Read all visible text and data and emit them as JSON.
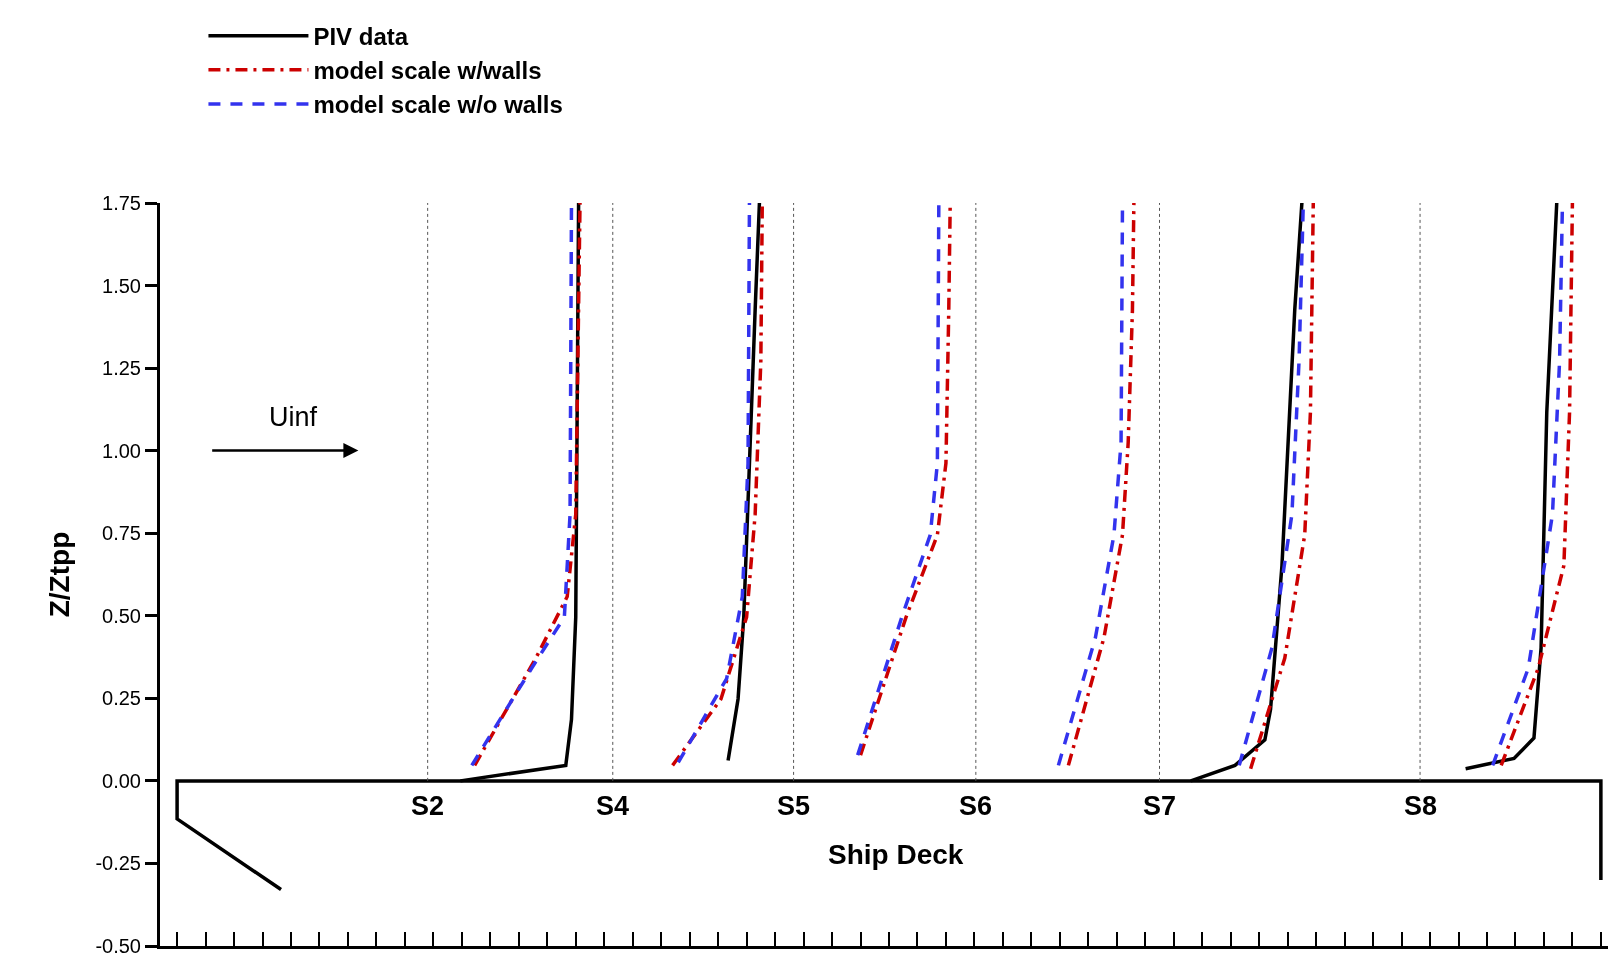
{
  "chart_data": {
    "type": "line",
    "ylabel": "Z/Ztpp",
    "legend": "top left",
    "grid": false,
    "xlim": [
      -0.12,
      10.05
    ],
    "xticks": [
      {
        "value": 0,
        "label": null
      },
      {
        "value": 0.2,
        "label": null
      },
      {
        "value": 0.4,
        "label": null
      },
      {
        "value": 0.6,
        "label": null
      },
      {
        "value": 0.8,
        "label": null
      },
      {
        "value": 1,
        "label": null
      },
      {
        "value": 1.2,
        "label": null
      },
      {
        "value": 1.4,
        "label": null
      },
      {
        "value": 1.6,
        "label": null
      },
      {
        "value": 1.8,
        "label": null
      },
      {
        "value": 2,
        "label": null
      },
      {
        "value": 2.2,
        "label": null
      },
      {
        "value": 2.4,
        "label": null
      },
      {
        "value": 2.6,
        "label": null
      },
      {
        "value": 2.8,
        "label": null
      },
      {
        "value": 3,
        "label": null
      },
      {
        "value": 3.2,
        "label": null
      },
      {
        "value": 3.4,
        "label": null
      },
      {
        "value": 3.6,
        "label": null
      },
      {
        "value": 3.8,
        "label": null
      },
      {
        "value": 4,
        "label": null
      },
      {
        "value": 4.2,
        "label": null
      },
      {
        "value": 4.4,
        "label": null
      },
      {
        "value": 4.6,
        "label": null
      },
      {
        "value": 4.8,
        "label": null
      },
      {
        "value": 5,
        "label": null
      },
      {
        "value": 5.2,
        "label": null
      },
      {
        "value": 5.4,
        "label": null
      },
      {
        "value": 5.6,
        "label": null
      },
      {
        "value": 5.8,
        "label": null
      },
      {
        "value": 6,
        "label": null
      },
      {
        "value": 6.2,
        "label": null
      },
      {
        "value": 6.4,
        "label": null
      },
      {
        "value": 6.6,
        "label": null
      },
      {
        "value": 6.8,
        "label": null
      },
      {
        "value": 7,
        "label": null
      },
      {
        "value": 7.2,
        "label": null
      },
      {
        "value": 7.4,
        "label": null
      },
      {
        "value": 7.6,
        "label": null
      },
      {
        "value": 7.8,
        "label": null
      },
      {
        "value": 8,
        "label": null
      },
      {
        "value": 8.2,
        "label": null
      },
      {
        "value": 8.4,
        "label": null
      },
      {
        "value": 8.6,
        "label": null
      },
      {
        "value": 8.8,
        "label": null
      },
      {
        "value": 9,
        "label": null
      },
      {
        "value": 9.2,
        "label": null
      },
      {
        "value": 9.4,
        "label": null
      },
      {
        "value": 9.6,
        "label": null
      },
      {
        "value": 9.8,
        "label": null
      },
      {
        "value": 10,
        "label": null
      }
    ],
    "ylim": [
      -0.5,
      1.75
    ],
    "yticks": [
      {
        "value": -0.5,
        "label": "-0.50"
      },
      {
        "value": -0.25,
        "label": "-0.25"
      },
      {
        "value": 0,
        "label": "0.00"
      },
      {
        "value": 0.25,
        "label": "0.25"
      },
      {
        "value": 0.5,
        "label": "0.50"
      },
      {
        "value": 0.75,
        "label": "0.75"
      },
      {
        "value": 1,
        "label": "1.00"
      },
      {
        "value": 1.25,
        "label": "1.25"
      },
      {
        "value": 1.5,
        "label": "1.50"
      },
      {
        "value": 1.75,
        "label": "1.75"
      }
    ],
    "tick_labels": "y",
    "series": [
      {
        "name": "PIV data",
        "color": "#000000",
        "line_style": "solid",
        "x": [
          1.99,
          2.73,
          2.77,
          2.8,
          2.81,
          2.82,
          null,
          3.87,
          3.94,
          3.98,
          4.02,
          4.06,
          4.09,
          null,
          7.12,
          7.43,
          7.64,
          7.68,
          7.76,
          7.85,
          7.9,
          null,
          9.05,
          9.39,
          9.53,
          9.58,
          9.62,
          9.69
        ],
        "values": [
          0,
          0.047,
          0.186,
          0.496,
          1.117,
          1.75,
          null,
          0.062,
          0.248,
          0.496,
          0.962,
          1.427,
          1.75,
          null,
          0,
          0.047,
          0.124,
          0.217,
          0.652,
          1.427,
          1.75,
          null,
          0.037,
          0.068,
          0.13,
          0.403,
          1.117,
          1.75
        ]
      },
      {
        "name": "model scale w/walls",
        "color": "#cc0000",
        "line_style": "dashdot",
        "x": [
          2.09,
          2.52,
          2.74,
          2.8,
          2.83,
          null,
          3.48,
          3.82,
          4,
          4.06,
          4.1,
          4.11,
          null,
          4.8,
          5.12,
          5.34,
          5.4,
          5.42,
          5.43,
          null,
          6.26,
          6.51,
          6.64,
          6.68,
          6.71,
          6.72,
          null,
          7.54,
          7.78,
          7.92,
          7.96,
          7.98,
          null,
          9.3,
          9.56,
          9.74,
          9.78,
          9.8
        ],
        "values": [
          0.047,
          0.372,
          0.558,
          0.807,
          1.75,
          null,
          0.047,
          0.248,
          0.496,
          0.807,
          1.272,
          1.75,
          null,
          0.078,
          0.496,
          0.745,
          0.962,
          1.427,
          1.75,
          null,
          0.047,
          0.434,
          0.745,
          1.024,
          1.427,
          1.75,
          null,
          0.037,
          0.372,
          0.745,
          1.117,
          1.75,
          null,
          0.047,
          0.341,
          0.652,
          1.117,
          1.75
        ]
      },
      {
        "name": "model scale w/o walls",
        "color": "#3333ee",
        "line_style": "dashed",
        "x": [
          2.07,
          2.49,
          2.72,
          2.76,
          2.77,
          null,
          3.52,
          3.86,
          3.97,
          4.01,
          4.02,
          null,
          4.78,
          5.09,
          5.29,
          5.34,
          5.35,
          null,
          6.19,
          6.45,
          6.58,
          6.63,
          6.64,
          null,
          7.46,
          7.69,
          7.83,
          7.88,
          7.91,
          null,
          9.24,
          9.49,
          9.66,
          9.71,
          9.73
        ],
        "values": [
          0.047,
          0.341,
          0.496,
          0.807,
          1.75,
          null,
          0.056,
          0.31,
          0.558,
          0.962,
          1.75,
          null,
          0.078,
          0.496,
          0.745,
          0.962,
          1.75,
          null,
          0.047,
          0.434,
          0.745,
          1.024,
          1.75,
          null,
          0.047,
          0.403,
          0.807,
          1.272,
          1.75,
          null,
          0.047,
          0.341,
          0.807,
          1.272,
          1.75
        ]
      },
      {
        "color": "#000000",
        "line_style": "solid",
        "x": [
          0.73,
          0,
          0,
          10,
          10
        ],
        "values": [
          -0.329,
          -0.115,
          0,
          0,
          -0.3
        ]
      }
    ],
    "ref_lines": [
      {
        "axis": "x",
        "value": 1.76,
        "label": "S2",
        "color": "#555555",
        "line_style": "dotted"
      },
      {
        "axis": "x",
        "value": 3.06,
        "label": "S4",
        "color": "#555555",
        "line_style": "dotted"
      },
      {
        "axis": "x",
        "value": 4.33,
        "label": "S5",
        "color": "#555555",
        "line_style": "dotted"
      },
      {
        "axis": "x",
        "value": 5.61,
        "label": "S6",
        "color": "#555555",
        "line_style": "dotted"
      },
      {
        "axis": "x",
        "value": 6.9,
        "label": "S7",
        "color": "#555555",
        "line_style": "dotted"
      },
      {
        "axis": "x",
        "value": 8.73,
        "label": "S8",
        "color": "#555555",
        "line_style": "dotted"
      }
    ],
    "annotations": [
      "Uinf",
      "Ship Deck"
    ]
  }
}
